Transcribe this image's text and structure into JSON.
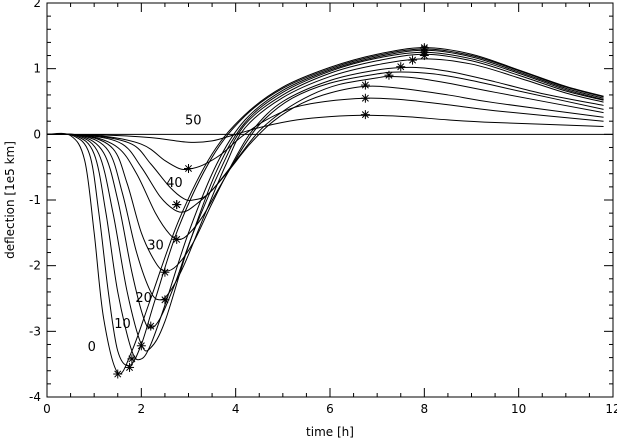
{
  "chart_data": {
    "type": "line",
    "xlabel": "time [h]",
    "ylabel": "deflection [1e5 km]",
    "xlim": [
      0,
      12
    ],
    "ylim": [
      -4,
      2
    ],
    "xticks": [
      "0",
      "2",
      "4",
      "6",
      "8",
      "10",
      "12"
    ],
    "yticks": [
      "-4",
      "-3",
      "-2",
      "-1",
      "0",
      "1",
      "2"
    ],
    "xtick_values": [
      0,
      2,
      4,
      6,
      8,
      10,
      12
    ],
    "ytick_values": [
      -4,
      -3,
      -2,
      -1,
      0,
      1,
      2
    ],
    "grid": false,
    "zero_line": true,
    "series": [
      {
        "label": "0",
        "x": [
          0,
          0.5,
          0.8,
          1.0,
          1.2,
          1.5,
          1.8,
          2.2,
          2.8,
          3.5,
          4.2,
          5.0,
          6.0,
          7.0,
          8.0,
          9.0,
          10.0,
          11.0,
          11.8
        ],
        "y": [
          0,
          -0.02,
          -0.4,
          -1.5,
          -2.8,
          -3.63,
          -3.3,
          -2.5,
          -1.3,
          -0.3,
          0.3,
          0.72,
          1.02,
          1.22,
          1.32,
          1.22,
          0.98,
          0.73,
          0.58
        ],
        "marker": [
          1.5,
          -3.65
        ]
      },
      {
        "label": "",
        "x": [
          0,
          0.55,
          0.9,
          1.1,
          1.3,
          1.5,
          1.75,
          2.0,
          2.3,
          2.8,
          3.5,
          4.2,
          5.0,
          6.0,
          7.0,
          8.0,
          9.0,
          10.0,
          11.0,
          11.8
        ],
        "y": [
          0,
          -0.02,
          -0.3,
          -1.2,
          -2.4,
          -3.3,
          -3.52,
          -3.2,
          -2.5,
          -1.4,
          -0.35,
          0.28,
          0.7,
          1.0,
          1.2,
          1.3,
          1.2,
          0.97,
          0.72,
          0.57
        ],
        "marker": [
          1.75,
          -3.55
        ]
      },
      {
        "label": "",
        "x": [
          0,
          0.6,
          1.0,
          1.25,
          1.5,
          1.8,
          2.0,
          2.2,
          2.5,
          3.0,
          3.6,
          4.2,
          5.0,
          6.0,
          7.0,
          8.0,
          9.0,
          10.0,
          11.0,
          11.8
        ],
        "y": [
          0,
          -0.02,
          -0.3,
          -1.2,
          -2.4,
          -3.3,
          -3.42,
          -3.2,
          -2.6,
          -1.5,
          -0.45,
          0.22,
          0.67,
          0.98,
          1.18,
          1.28,
          1.18,
          0.95,
          0.7,
          0.55
        ],
        "marker": [
          1.8,
          -3.42
        ]
      },
      {
        "label": "10",
        "x": [
          0,
          0.65,
          1.1,
          1.4,
          1.7,
          2.0,
          2.2,
          2.5,
          3.0,
          3.6,
          4.2,
          5.0,
          6.0,
          7.0,
          8.0,
          9.0,
          10.0,
          11.0,
          11.8
        ],
        "y": [
          0,
          -0.02,
          -0.3,
          -1.2,
          -2.4,
          -3.2,
          -3.25,
          -2.85,
          -1.7,
          -0.55,
          0.18,
          0.64,
          0.96,
          1.16,
          1.25,
          1.15,
          0.93,
          0.68,
          0.53
        ],
        "marker": [
          2.0,
          -3.22
        ]
      },
      {
        "label": "",
        "x": [
          0,
          0.7,
          1.2,
          1.5,
          1.8,
          2.05,
          2.2,
          2.4,
          2.7,
          3.1,
          3.7,
          4.2,
          5.0,
          6.0,
          7.0,
          8.0,
          9.0,
          10.0,
          11.0,
          11.8
        ],
        "y": [
          0,
          -0.02,
          -0.28,
          -1.0,
          -2.1,
          -2.8,
          -2.95,
          -2.8,
          -2.3,
          -1.5,
          -0.5,
          0.15,
          0.6,
          0.93,
          1.12,
          1.22,
          1.12,
          0.9,
          0.66,
          0.52
        ],
        "marker": [
          2.2,
          -2.92
        ]
      },
      {
        "label": "20",
        "x": [
          0,
          0.75,
          1.3,
          1.6,
          1.9,
          2.2,
          2.4,
          2.6,
          2.9,
          3.3,
          3.8,
          4.2,
          5.0,
          6.0,
          7.0,
          8.0,
          9.0,
          10.0,
          11.0,
          11.8
        ],
        "y": [
          0,
          -0.02,
          -0.25,
          -0.9,
          -1.8,
          -2.4,
          -2.52,
          -2.4,
          -2.0,
          -1.3,
          -0.45,
          0.1,
          0.56,
          0.88,
          1.06,
          1.15,
          1.07,
          0.86,
          0.63,
          0.49
        ],
        "marker": [
          2.5,
          -2.52
        ]
      },
      {
        "label": "",
        "x": [
          0,
          0.8,
          1.4,
          1.7,
          2.0,
          2.3,
          2.5,
          2.75,
          3.1,
          3.5,
          4.0,
          4.4,
          5.0,
          6.0,
          7.0,
          7.75,
          8.5,
          9.5,
          10.5,
          11.8
        ],
        "y": [
          0,
          -0.02,
          -0.22,
          -0.75,
          -1.5,
          -1.95,
          -2.08,
          -2.0,
          -1.65,
          -1.05,
          -0.35,
          0.1,
          0.5,
          0.82,
          0.98,
          1.02,
          0.96,
          0.8,
          0.62,
          0.44
        ],
        "marker": [
          2.5,
          -2.1
        ]
      },
      {
        "label": "30",
        "x": [
          0,
          0.85,
          1.5,
          1.9,
          2.3,
          2.6,
          2.8,
          3.0,
          3.3,
          3.7,
          4.2,
          4.6,
          5.2,
          6.0,
          7.0,
          7.5,
          8.2,
          9.0,
          10.0,
          11.8
        ],
        "y": [
          0,
          -0.02,
          -0.2,
          -0.6,
          -1.2,
          -1.52,
          -1.6,
          -1.52,
          -1.25,
          -0.75,
          -0.15,
          0.22,
          0.55,
          0.78,
          0.92,
          0.95,
          0.92,
          0.82,
          0.66,
          0.38
        ],
        "marker": [
          2.75,
          -1.6
        ]
      },
      {
        "label": "",
        "x": [
          0,
          0.9,
          1.6,
          2.0,
          2.4,
          2.7,
          2.9,
          3.1,
          3.5,
          4.0,
          4.5,
          5.0,
          5.6,
          6.2,
          7.0,
          7.25,
          7.8,
          8.5,
          9.5,
          11.8
        ],
        "y": [
          0,
          -0.02,
          -0.15,
          -0.5,
          -0.95,
          -1.15,
          -1.18,
          -1.1,
          -0.85,
          -0.4,
          0.05,
          0.35,
          0.6,
          0.76,
          0.86,
          0.88,
          0.86,
          0.78,
          0.64,
          0.33
        ],
        "marker": [
          2.75,
          -1.07
        ]
      },
      {
        "label": "40",
        "x": [
          0,
          1.0,
          1.8,
          2.2,
          2.6,
          2.9,
          3.1,
          3.4,
          3.8,
          4.3,
          4.8,
          5.4,
          6.0,
          6.75,
          7.5,
          8.5,
          9.5,
          11.8
        ],
        "y": [
          0,
          -0.02,
          -0.15,
          -0.45,
          -0.8,
          -0.98,
          -1.0,
          -0.92,
          -0.6,
          -0.15,
          0.2,
          0.47,
          0.63,
          0.73,
          0.7,
          0.6,
          0.48,
          0.26
        ],
        "marker": [
          2.75,
          -1.07
        ]
      },
      {
        "label": "",
        "x": [
          0,
          1.1,
          2.0,
          2.5,
          2.8,
          3.0,
          3.3,
          3.7,
          4.1,
          4.6,
          5.2,
          5.9,
          6.75,
          7.5,
          8.5,
          9.5,
          11.8
        ],
        "y": [
          0,
          -0.02,
          -0.15,
          -0.4,
          -0.52,
          -0.53,
          -0.47,
          -0.3,
          -0.05,
          0.2,
          0.4,
          0.5,
          0.55,
          0.53,
          0.45,
          0.36,
          0.2
        ],
        "marker": [
          3.0,
          -0.52
        ]
      },
      {
        "label": "50",
        "x": [
          0,
          1.2,
          2.2,
          3.0,
          3.5,
          4.0,
          4.6,
          5.3,
          6.0,
          6.75,
          7.6,
          8.5,
          9.5,
          11.8
        ],
        "y": [
          0,
          -0.01,
          -0.05,
          -0.12,
          -0.1,
          0.0,
          0.12,
          0.22,
          0.27,
          0.29,
          0.27,
          0.22,
          0.18,
          0.12
        ],
        "marker": [
          6.75,
          0.3
        ]
      }
    ],
    "extra_markers": [
      [
        6.75,
        0.55
      ],
      [
        6.75,
        0.75
      ],
      [
        7.25,
        0.9
      ],
      [
        7.5,
        1.03
      ],
      [
        7.75,
        1.13
      ],
      [
        8.0,
        1.2
      ],
      [
        8.0,
        1.25
      ],
      [
        8.0,
        1.3
      ],
      [
        8.0,
        1.32
      ]
    ],
    "curve_labels": [
      {
        "text": "0",
        "x": 0.95,
        "y": -3.3
      },
      {
        "text": "10",
        "x": 1.6,
        "y": -2.95
      },
      {
        "text": "20",
        "x": 2.05,
        "y": -2.55
      },
      {
        "text": "30",
        "x": 2.3,
        "y": -1.75
      },
      {
        "text": "40",
        "x": 2.7,
        "y": -0.8
      },
      {
        "text": "50",
        "x": 3.1,
        "y": 0.15
      }
    ]
  }
}
